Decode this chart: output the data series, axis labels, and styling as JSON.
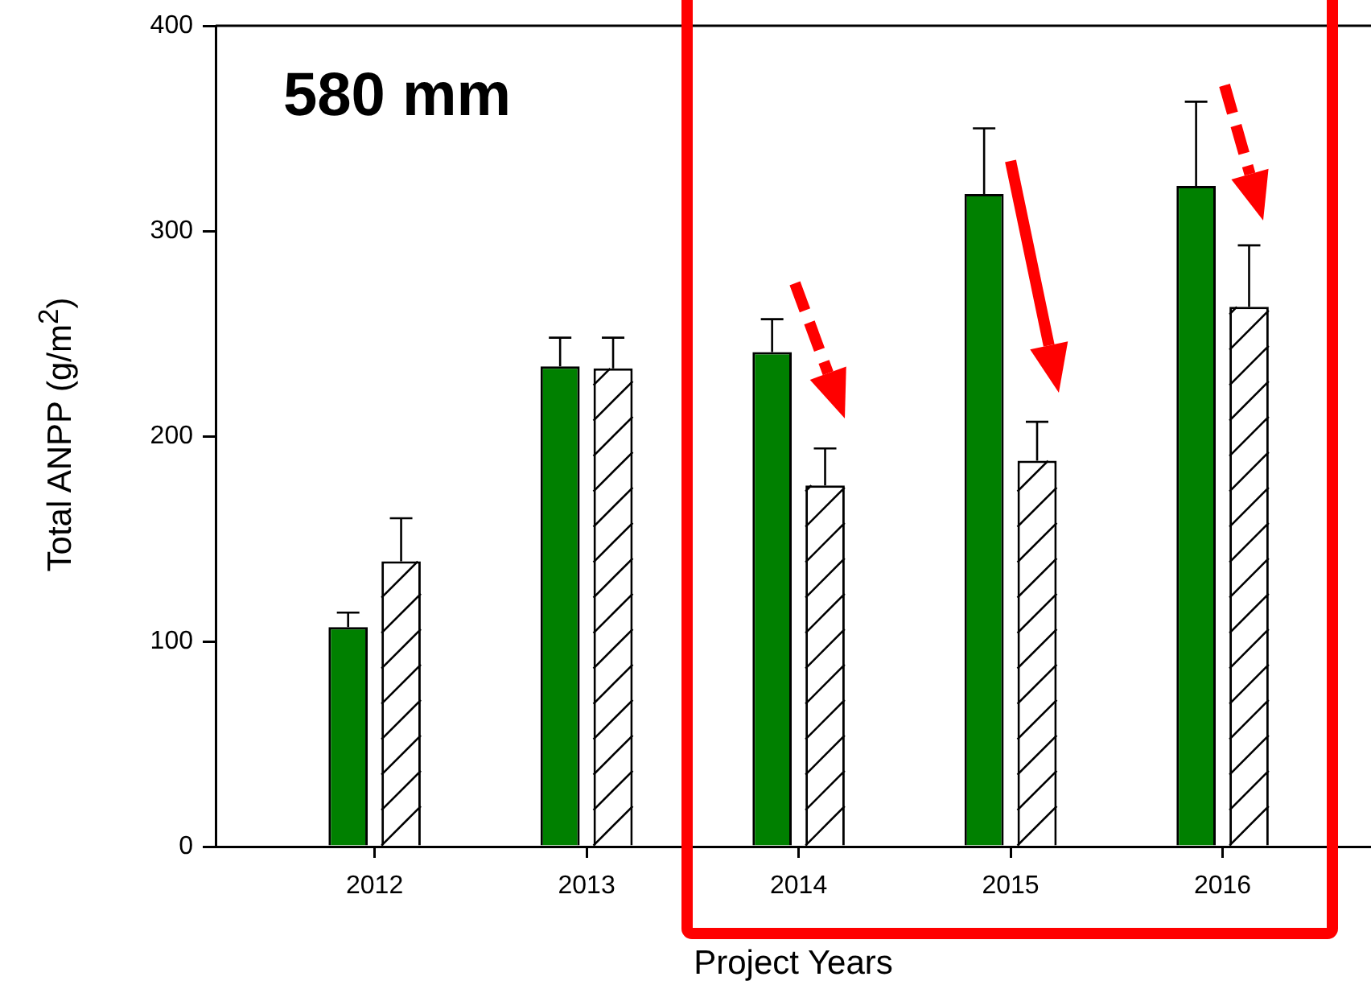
{
  "chart_data": {
    "type": "bar",
    "xlabel": "Project Years",
    "ylabel": "Total ANPP (g/m$^{2}$)",
    "annotations": [
      "580 mm"
    ],
    "x": [
      2012,
      2013,
      2014,
      2015,
      2016
    ],
    "xlim": [
      2011.25,
      2016.7
    ],
    "xticks": [
      2012,
      2013,
      2014,
      2015,
      2016
    ],
    "ylim": [
      0,
      400
    ],
    "yticks": [
      0,
      100,
      200,
      300,
      400
    ],
    "grid": false,
    "legend": false,
    "series": [
      {
        "color": "#008000",
        "values": [
          107,
          234,
          241,
          318,
          322
        ],
        "errors": [
          [
            107,
            114
          ],
          [
            234,
            248
          ],
          [
            241,
            257
          ],
          [
            318,
            350
          ],
          [
            322,
            363
          ]
        ]
      },
      {
        "color": "#ffffff",
        "values": [
          139,
          233,
          176,
          188,
          263
        ],
        "errors": [
          [
            139,
            160
          ],
          [
            233,
            248
          ],
          [
            176,
            194
          ],
          [
            188,
            207
          ],
          [
            263,
            293
          ]
        ]
      }
    ]
  }
}
